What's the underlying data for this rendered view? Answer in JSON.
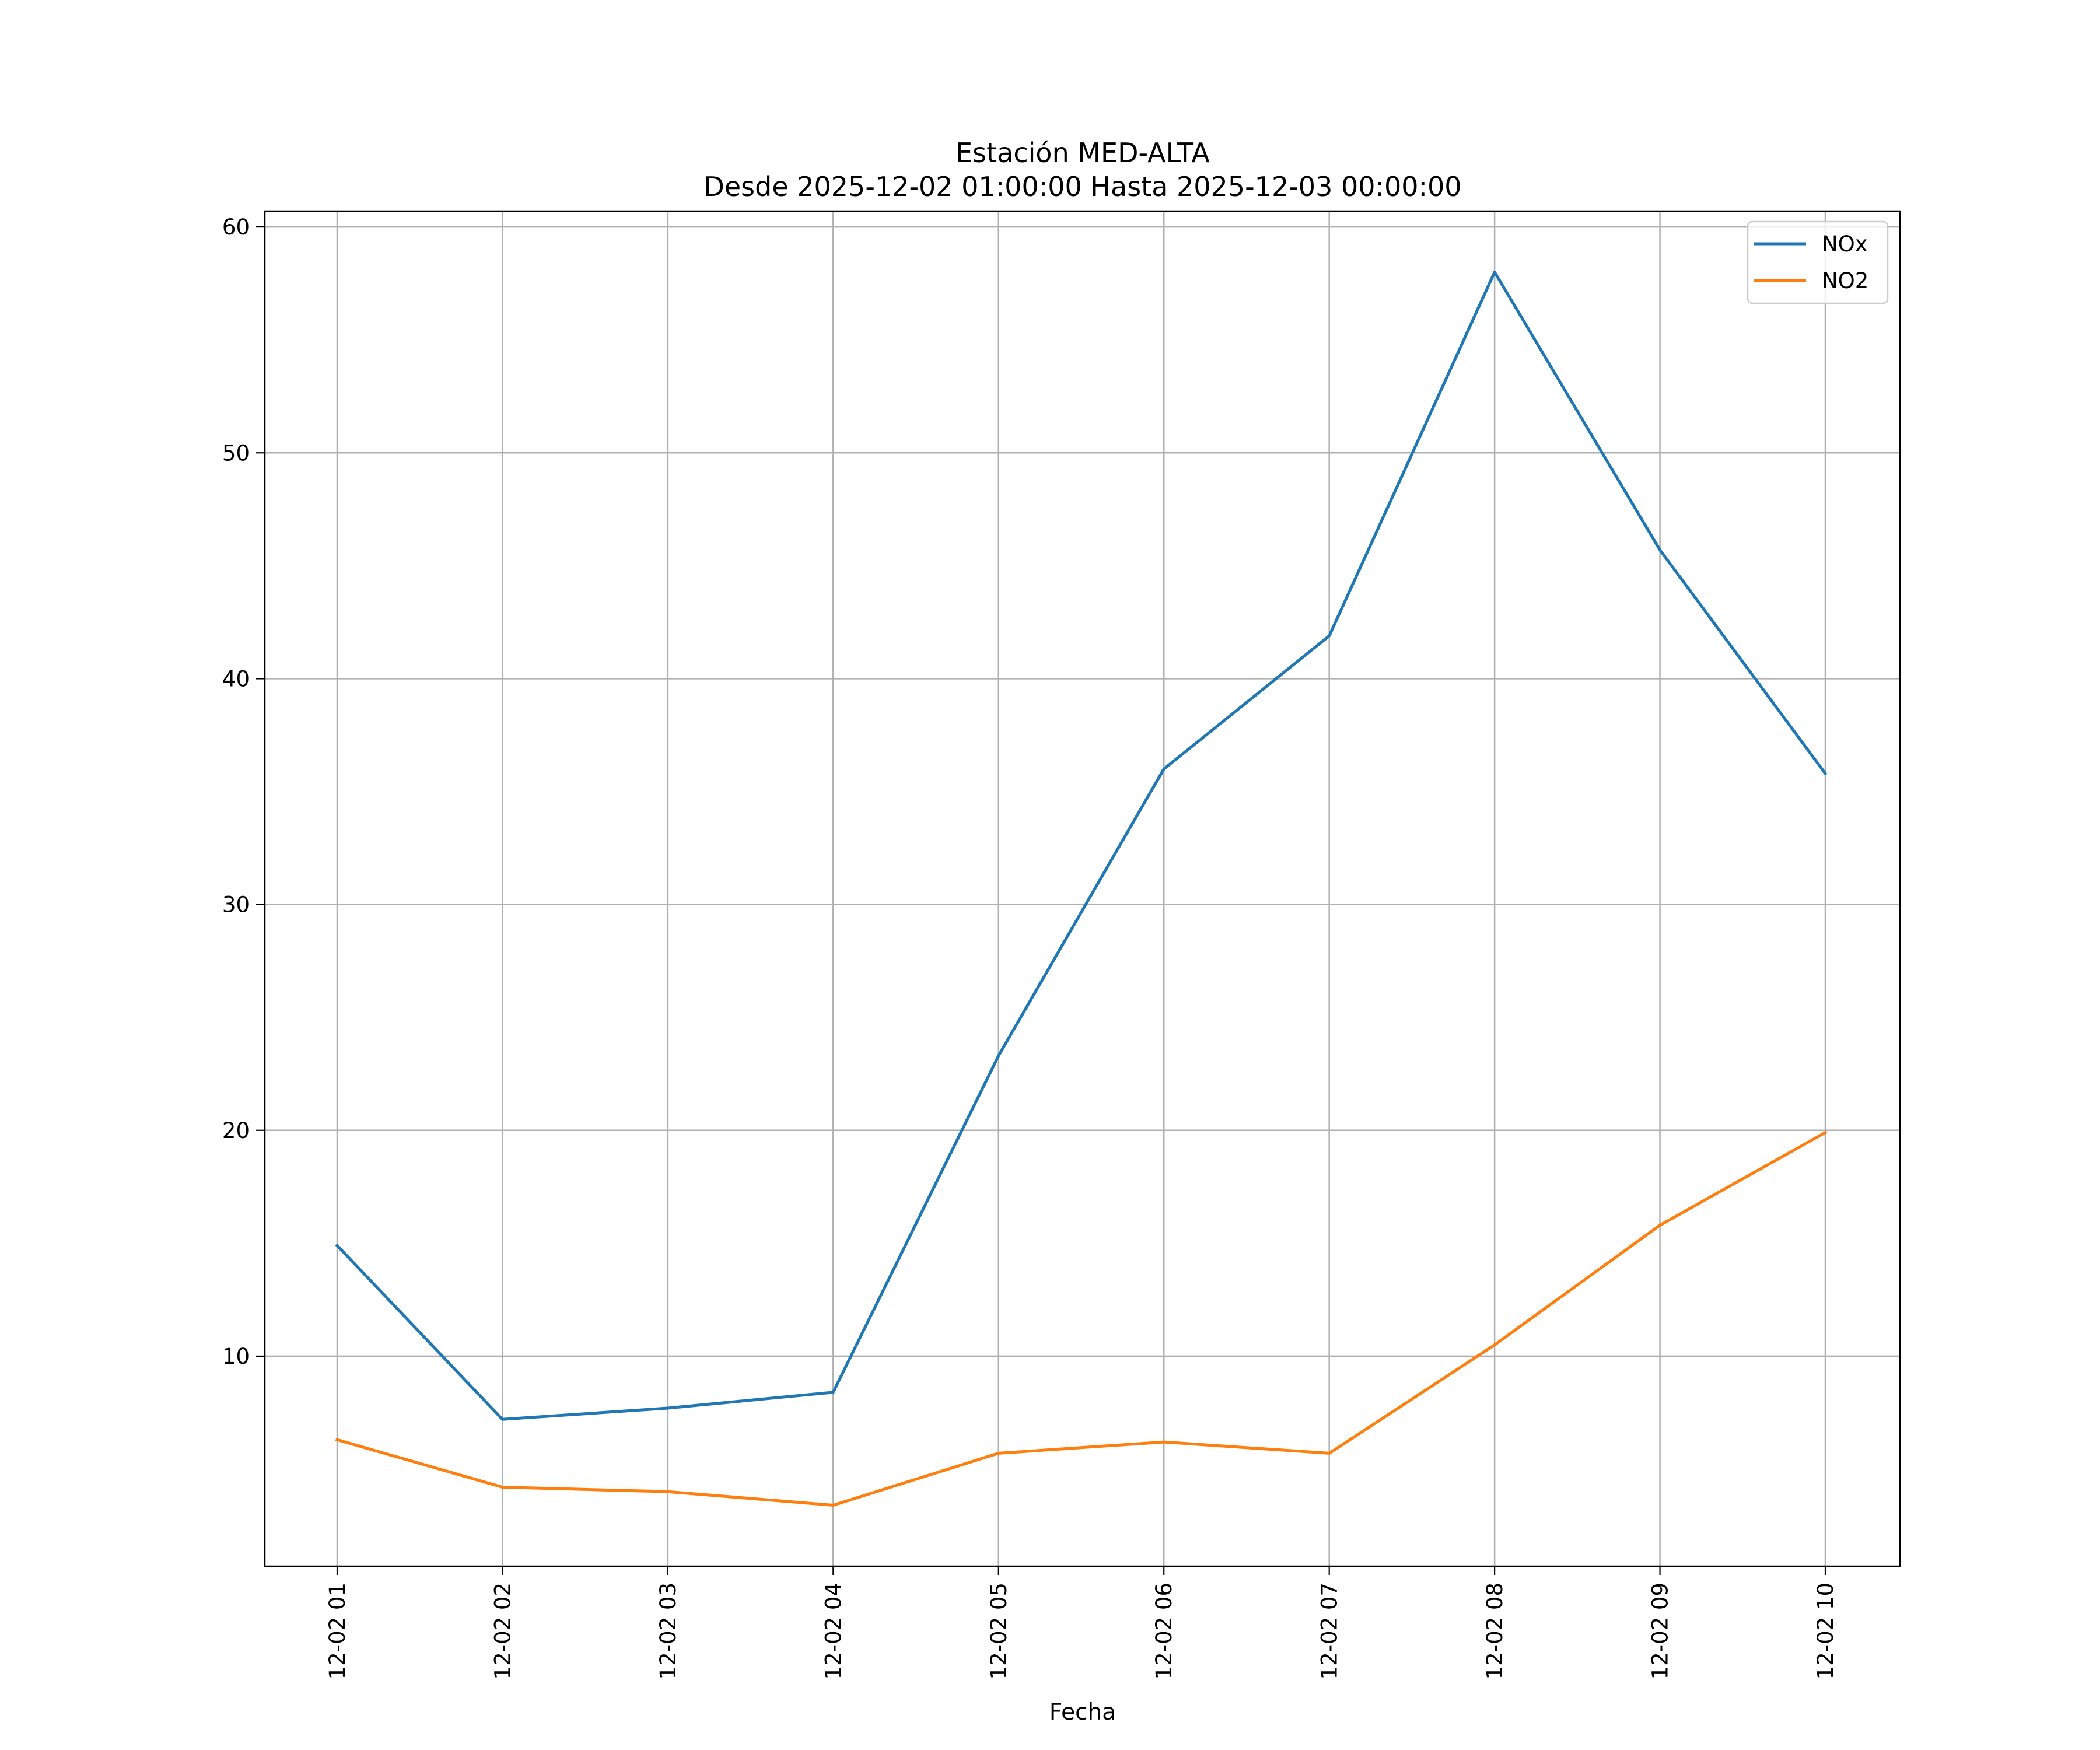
{
  "chart_data": {
    "type": "line",
    "title": "Estación MED-ALTA",
    "subtitle": "Desde 2025-12-02 01:00:00 Hasta 2025-12-03 00:00:00",
    "xlabel": "Fecha",
    "ylabel": "",
    "categories": [
      "12-02 01",
      "12-02 02",
      "12-02 03",
      "12-02 04",
      "12-02 05",
      "12-02 06",
      "12-02 07",
      "12-02 08",
      "12-02 09",
      "12-02 10"
    ],
    "ylim": [
      0.7,
      60.7
    ],
    "yticks": [
      10,
      20,
      30,
      40,
      50,
      60
    ],
    "grid": true,
    "legend_position": "top-right",
    "series": [
      {
        "name": "NOx",
        "color": "#1f77b4",
        "values": [
          14.9,
          7.2,
          7.7,
          8.4,
          23.3,
          36.0,
          41.9,
          58.0,
          45.7,
          35.8
        ]
      },
      {
        "name": "NO2",
        "color": "#ff7f0e",
        "values": [
          6.3,
          4.2,
          4.0,
          3.4,
          5.7,
          6.2,
          5.7,
          10.5,
          15.8,
          19.9
        ]
      }
    ]
  }
}
